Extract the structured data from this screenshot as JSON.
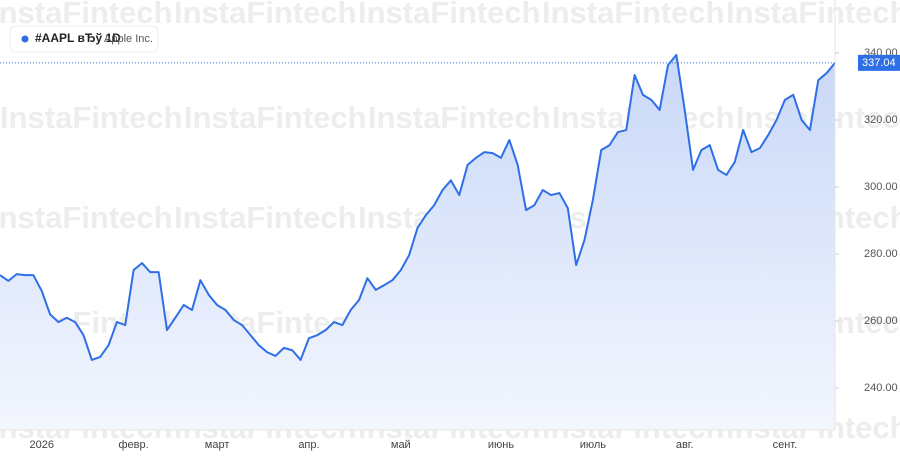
{
  "header": {
    "symbol": "#AAPL вЂў 1D",
    "company": "Apple Inc."
  },
  "watermark": "InstaFintech",
  "chart_data": {
    "type": "area",
    "categories": [
      null,
      null,
      null,
      null,
      null,
      "2026",
      null,
      null,
      null,
      null,
      null,
      null,
      null,
      null,
      null,
      null,
      "февр.",
      null,
      null,
      null,
      null,
      null,
      null,
      null,
      null,
      null,
      "март",
      null,
      null,
      null,
      null,
      null,
      null,
      null,
      null,
      null,
      null,
      "апр.",
      null,
      null,
      null,
      null,
      null,
      null,
      null,
      null,
      null,
      null,
      "май",
      null,
      null,
      null,
      null,
      null,
      null,
      null,
      null,
      null,
      null,
      null,
      "июнь",
      null,
      null,
      null,
      null,
      null,
      null,
      null,
      null,
      null,
      null,
      "июль",
      null,
      null,
      null,
      null,
      null,
      null,
      null,
      null,
      null,
      null,
      "авг.",
      null,
      null,
      null,
      null,
      null,
      null,
      null,
      null,
      null,
      null,
      null,
      "сент.",
      null,
      null,
      null,
      null,
      null,
      null
    ],
    "series": [
      {
        "name": "#AAPL",
        "color": "#2f6fe6",
        "values": [
          273.7,
          272,
          274,
          273.7,
          273.7,
          269,
          262,
          259.7,
          261,
          259.7,
          255.8,
          248.4,
          249.3,
          252.8,
          259.7,
          258.8,
          275.2,
          277.3,
          274.6,
          274.6,
          257.3,
          261,
          264.8,
          263.3,
          272.2,
          267.8,
          264.8,
          263.3,
          260.3,
          258.8,
          255.8,
          252.8,
          250.7,
          249.6,
          252,
          251.3,
          248.4,
          254.9,
          255.8,
          257.3,
          259.7,
          258.8,
          263.3,
          266.3,
          272.8,
          269.3,
          270.7,
          272.2,
          275.2,
          279.7,
          287.8,
          291.6,
          294.6,
          299.1,
          302,
          297.6,
          306.6,
          308.7,
          310.4,
          310.1,
          308.7,
          314,
          306.6,
          293.1,
          294.6,
          299.1,
          297.6,
          298.2,
          293.7,
          276.7,
          284.2,
          296.1,
          311,
          312.5,
          316.4,
          317,
          333.4,
          327.5,
          326,
          323,
          336.4,
          339.4,
          323,
          305.1,
          311,
          312.5,
          305.1,
          303.6,
          307.5,
          317,
          310.4,
          311.6,
          315.5,
          320,
          326,
          327.5,
          320,
          317,
          331.9,
          334,
          337.04
        ]
      }
    ],
    "ylim": [
      227.5,
      355.8
    ],
    "yticks": [
      {
        "value": 240,
        "label": "240.00"
      },
      {
        "value": 260,
        "label": "260.00"
      },
      {
        "value": 280,
        "label": "280.00"
      },
      {
        "value": 300,
        "label": "300.00"
      },
      {
        "value": 320,
        "label": "320.00"
      },
      {
        "value": 340,
        "label": "340.00"
      }
    ],
    "grid": false
  }
}
